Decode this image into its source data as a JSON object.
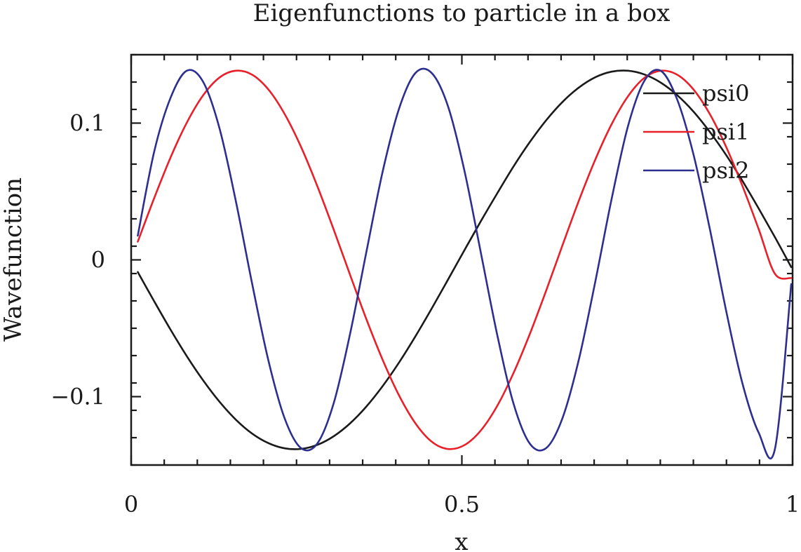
{
  "chart_data": {
    "type": "line",
    "title": "Eigenfunctions to particle in a box",
    "xlabel": "x",
    "ylabel": "Wavefunction",
    "xlim": [
      0,
      1
    ],
    "ylim": [
      -0.15,
      0.15
    ],
    "x_ticks": [
      {
        "value": 0,
        "label": "0"
      },
      {
        "value": 0.5,
        "label": "0.5"
      },
      {
        "value": 1,
        "label": "1"
      }
    ],
    "y_ticks": [
      {
        "value": -0.1,
        "label": "−0.1"
      },
      {
        "value": 0,
        "label": "0"
      },
      {
        "value": 0.1,
        "label": "0.1"
      }
    ],
    "x_minor_step": 0.05,
    "y_minor_step": 0.02,
    "grid": false,
    "legend_position": "top-right",
    "x": [
      0.01,
      0.0347,
      0.0594,
      0.0841,
      0.1088,
      0.1335,
      0.1582,
      0.1829,
      0.2076,
      0.2323,
      0.257,
      0.2817,
      0.3064,
      0.3311,
      0.3558,
      0.3805,
      0.4052,
      0.4299,
      0.4546,
      0.4793,
      0.504,
      0.5287,
      0.5534,
      0.5781,
      0.6028,
      0.6275,
      0.6522,
      0.6769,
      0.7016,
      0.7263,
      0.751,
      0.7757,
      0.8004,
      0.8251,
      0.8498,
      0.8745,
      0.8992,
      0.9239,
      0.9486,
      0.9733,
      0.998
    ],
    "series": [
      {
        "name": "psi0",
        "color": "#1a1a1a",
        "values": [
          -0.0089,
          -0.0302,
          -0.0509,
          -0.0704,
          -0.0881,
          -0.1037,
          -0.1168,
          -0.127,
          -0.134,
          -0.1378,
          -0.1382,
          -0.1352,
          -0.1289,
          -0.1195,
          -0.1071,
          -0.0921,
          -0.0749,
          -0.0558,
          -0.0354,
          -0.0142,
          0.0072,
          0.0283,
          0.0486,
          0.0683,
          0.0862,
          0.1021,
          0.1155,
          0.126,
          0.1335,
          0.1376,
          0.1383,
          0.1356,
          0.1297,
          0.1206,
          0.1086,
          0.0938,
          0.0769,
          0.058,
          0.0377,
          0.0166,
          -0.0053
        ]
      },
      {
        "name": "psi1",
        "color": "#e8202a",
        "values": [
          0.0133,
          0.045,
          0.0747,
          0.1003,
          0.1203,
          0.1333,
          0.1383,
          0.1354,
          0.1245,
          0.1064,
          0.0824,
          0.0536,
          0.0219,
          -0.0111,
          -0.0436,
          -0.0734,
          -0.0993,
          -0.1196,
          -0.133,
          -0.1383,
          -0.1354,
          -0.1247,
          -0.1068,
          -0.0827,
          -0.0541,
          -0.0224,
          0.0108,
          0.0433,
          0.0732,
          0.0991,
          0.1195,
          0.133,
          0.1383,
          0.1355,
          0.1248,
          0.1069,
          0.083,
          0.0544,
          0.0227,
          -0.0102,
          -0.0133
        ]
      },
      {
        "name": "psi2",
        "color": "#2c2f8f",
        "values": [
          0.0177,
          0.0789,
          0.1183,
          0.1383,
          0.1302,
          0.0963,
          0.0431,
          -0.0174,
          -0.0738,
          -0.1162,
          -0.1377,
          -0.1341,
          -0.1045,
          -0.0538,
          0.0062,
          0.0651,
          0.1108,
          0.1367,
          0.1365,
          0.1119,
          0.0649,
          0.0052,
          -0.0547,
          -0.1051,
          -0.1344,
          -0.1376,
          -0.1156,
          -0.0728,
          -0.0162,
          0.0443,
          0.0975,
          0.1307,
          0.1383,
          0.1178,
          0.0778,
          0.0235,
          -0.0364,
          -0.0898,
          -0.1262,
          -0.1383,
          -0.0177
        ]
      }
    ]
  }
}
